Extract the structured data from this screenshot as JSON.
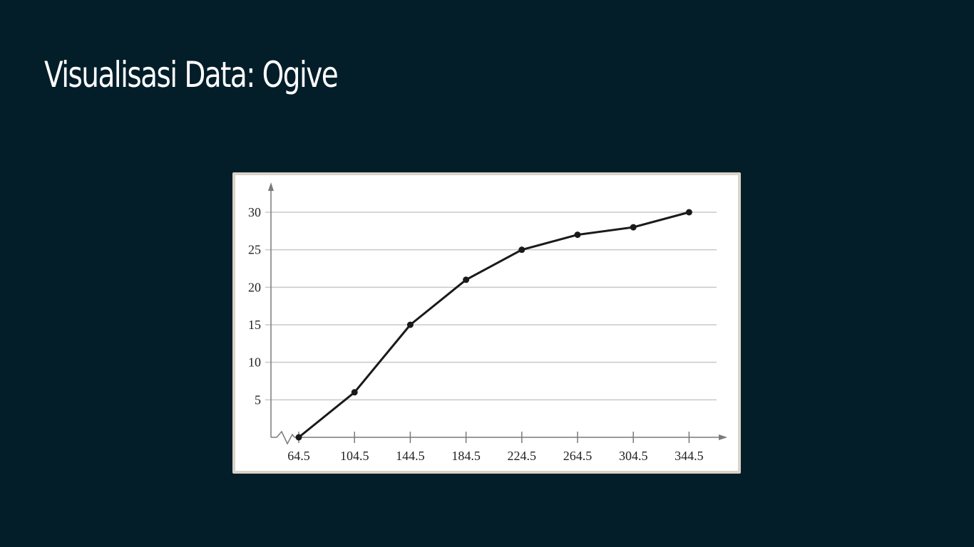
{
  "slide": {
    "title": "Visualisasi Data: Ogive"
  },
  "chart_data": {
    "type": "line",
    "title": "",
    "xlabel": "",
    "ylabel": "",
    "x": [
      64.5,
      104.5,
      144.5,
      184.5,
      224.5,
      264.5,
      304.5,
      344.5
    ],
    "x_tick_labels": [
      "64.5",
      "104.5",
      "144.5",
      "184.5",
      "224.5",
      "264.5",
      "304.5",
      "344.5"
    ],
    "y_ticks": [
      5,
      10,
      15,
      20,
      25,
      30
    ],
    "y_tick_labels": [
      "5",
      "10",
      "15",
      "20",
      "25",
      "30"
    ],
    "ylim": [
      0,
      30
    ],
    "series": [
      {
        "values": [
          0,
          6,
          15,
          21,
          25,
          27,
          28,
          30
        ]
      }
    ],
    "grid": "horizontal",
    "x_axis_break": true,
    "colors": {
      "line": "#1a1a1a",
      "grid": "#c8c8c8",
      "axis": "#7a7a7a"
    }
  }
}
